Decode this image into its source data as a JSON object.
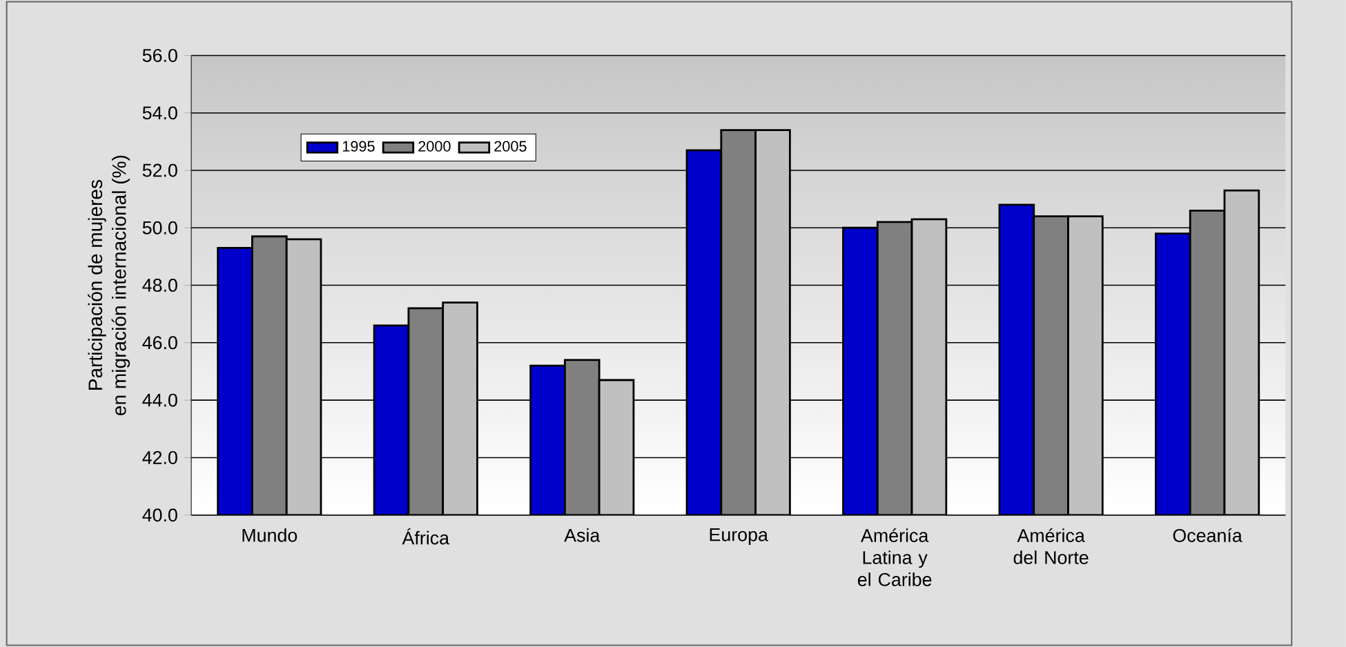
{
  "chart_data": {
    "type": "bar",
    "ylabel": "Participación de mujeres\nen migración internacional (%)",
    "categories": [
      "Mundo",
      "África",
      "Asia",
      "Europa",
      "América Latina y el Caribe",
      "América del Norte",
      "Oceanía"
    ],
    "series": [
      {
        "name": "1995",
        "color": "#0000cc",
        "values": [
          49.3,
          46.6,
          45.2,
          52.7,
          50.0,
          50.8,
          49.8
        ]
      },
      {
        "name": "2000",
        "color": "#808080",
        "values": [
          49.7,
          47.2,
          45.4,
          53.4,
          50.2,
          50.4,
          50.6
        ]
      },
      {
        "name": "2005",
        "color": "#c0c0c0",
        "values": [
          49.6,
          47.4,
          44.7,
          53.4,
          50.3,
          50.4,
          51.3
        ]
      }
    ],
    "ylim": [
      40,
      56
    ],
    "yticks": [
      {
        "value": 40,
        "label": "40.0"
      },
      {
        "value": 42,
        "label": "42.0"
      },
      {
        "value": 44,
        "label": "44.0"
      },
      {
        "value": 46,
        "label": "46.0"
      },
      {
        "value": 48,
        "label": "48.0"
      },
      {
        "value": 50,
        "label": "50.0"
      },
      {
        "value": 52,
        "label": "52.0"
      },
      {
        "value": 54,
        "label": "54.0"
      },
      {
        "value": 56,
        "label": "56.0"
      }
    ],
    "grid": "y",
    "legend": "top left"
  }
}
